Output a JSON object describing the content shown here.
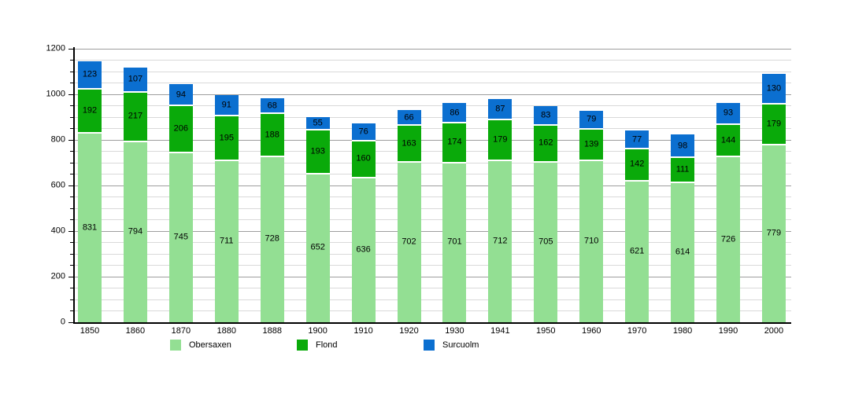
{
  "chart_data": {
    "type": "bar",
    "stacked": true,
    "title": "",
    "xlabel": "",
    "ylabel": "",
    "categories": [
      "1850",
      "1860",
      "1870",
      "1880",
      "1888",
      "1900",
      "1910",
      "1920",
      "1930",
      "1941",
      "1950",
      "1960",
      "1970",
      "1980",
      "1990",
      "2000"
    ],
    "series": [
      {
        "name": "Obersaxen",
        "color": "#93DF93",
        "values": [
          831,
          794,
          745,
          711,
          728,
          652,
          636,
          702,
          701,
          712,
          705,
          710,
          621,
          614,
          726,
          779
        ]
      },
      {
        "name": "Flond",
        "color": "#0AAA0A",
        "values": [
          192,
          217,
          206,
          195,
          188,
          193,
          160,
          163,
          174,
          179,
          162,
          139,
          142,
          111,
          144,
          179
        ]
      },
      {
        "name": "Surcuolm",
        "color": "#0B6FD0",
        "values": [
          123,
          107,
          94,
          91,
          68,
          55,
          76,
          66,
          86,
          87,
          83,
          79,
          77,
          98,
          93,
          130
        ]
      }
    ],
    "ylim": [
      0,
      1200
    ],
    "yticks": [
      0,
      200,
      400,
      600,
      800,
      1000,
      1200
    ],
    "minor_tick_step": 50,
    "grid": true,
    "legend_position": "bottom",
    "segment_labels_visible": true
  },
  "colors": {
    "background": "#ffffff",
    "axis": "#000000",
    "minor_gridline": "#d9d9d9",
    "major_gridline": "#9e9e9e",
    "label_text": "#000000"
  }
}
